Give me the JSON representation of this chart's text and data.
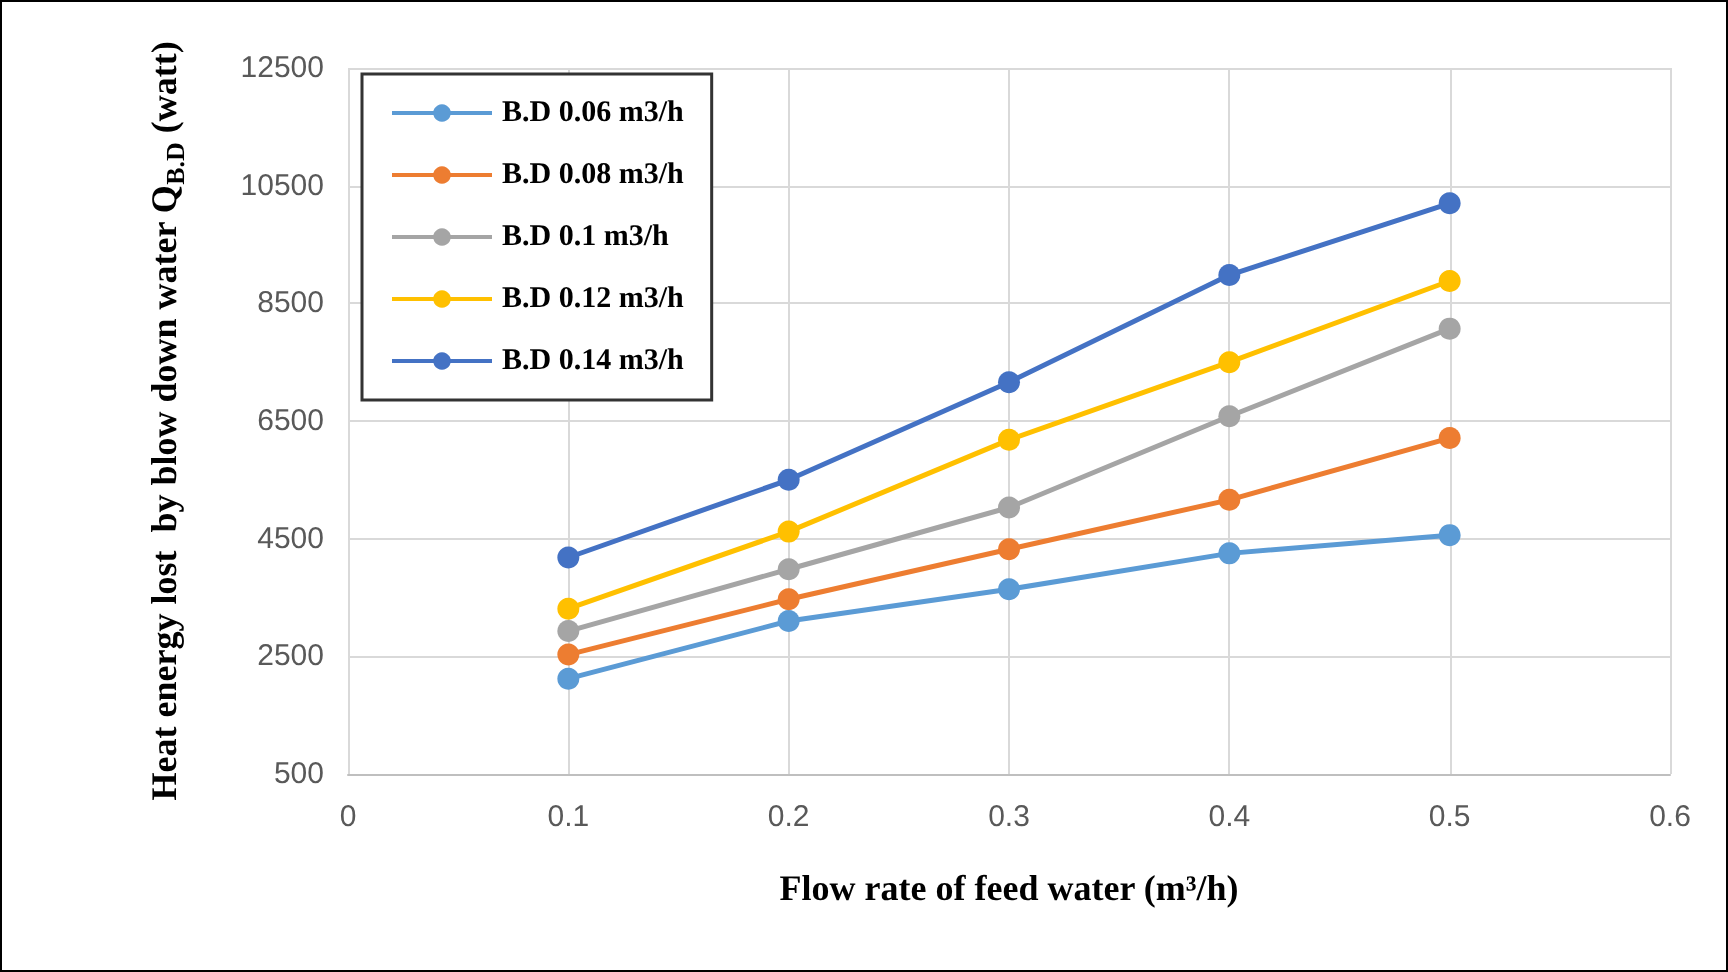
{
  "chart_data": {
    "type": "line",
    "xlabel": "Flow rate of feed water (m³/h)",
    "ylabel": "Heat energy lost  by blow down water Q$_{B.D}$ (watt)",
    "x": [
      0.1,
      0.2,
      0.3,
      0.4,
      0.5
    ],
    "series": [
      {
        "name": "B.D 0.06 m3/h",
        "color": "#5b9bd5",
        "values": [
          2120,
          3100,
          3640,
          4250,
          4560
        ]
      },
      {
        "name": "B.D 0.08 m3/h",
        "color": "#ed7d31",
        "values": [
          2530,
          3470,
          4320,
          5160,
          6210
        ]
      },
      {
        "name": "B.D 0.1 m3/h",
        "color": "#a5a5a5",
        "values": [
          2930,
          3980,
          5030,
          6580,
          8070
        ]
      },
      {
        "name": "B.D 0.12 m3/h",
        "color": "#ffc000",
        "values": [
          3310,
          4620,
          6180,
          7500,
          8880
        ]
      },
      {
        "name": "B.D 0.14 m3/h",
        "color": "#4472c4",
        "values": [
          4180,
          5500,
          7160,
          8980,
          10200
        ]
      }
    ],
    "xlim": [
      0,
      0.6
    ],
    "xticks": [
      0,
      0.1,
      0.2,
      0.3,
      0.4,
      0.5,
      0.6
    ],
    "ylim": [
      500,
      12500
    ],
    "yticks": [
      500,
      2500,
      4500,
      6500,
      8500,
      10500,
      12500
    ],
    "grid": true,
    "legend": "top left",
    "marker": "circle",
    "line_style": "solid"
  }
}
